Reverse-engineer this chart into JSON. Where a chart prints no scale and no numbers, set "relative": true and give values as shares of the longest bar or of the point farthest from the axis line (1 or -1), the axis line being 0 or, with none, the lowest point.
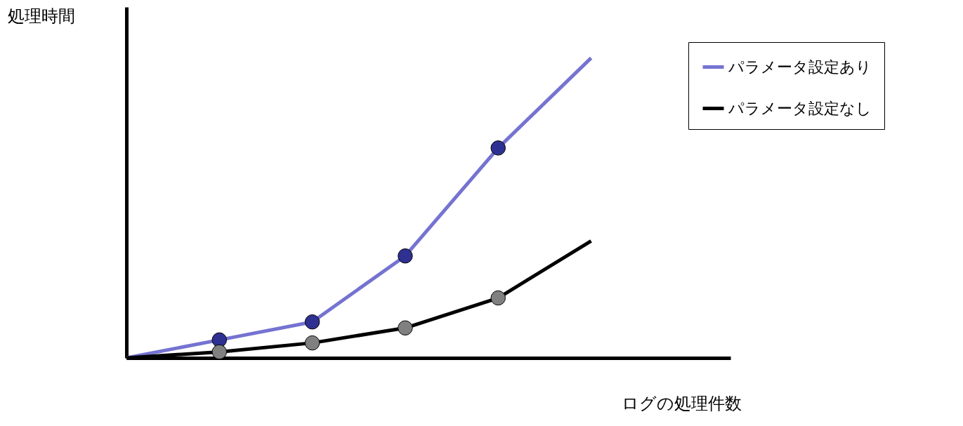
{
  "chart_data": {
    "type": "line",
    "relative": true,
    "xlabel": "ログの処理件数",
    "ylabel": "処理時間",
    "legend": "top right",
    "grid": false,
    "line_style": "solid",
    "marker": "circle",
    "categories": [
      null,
      null,
      null,
      null,
      null,
      null
    ],
    "series": [
      {
        "name": "パラメータ設定あり",
        "color": "#7573d1",
        "colors": [
          null,
          "#2e3192",
          "#2e3192",
          "#2e3192",
          "#2e3192",
          null
        ],
        "values": [
          0,
          0.06,
          0.12,
          0.34,
          0.7,
          1.0
        ]
      },
      {
        "name": "パラメータ設定なし",
        "color": "#000000",
        "colors": [
          null,
          "#808080",
          "#808080",
          "#808080",
          "#808080",
          null
        ],
        "values": [
          0,
          0.02,
          0.05,
          0.1,
          0.2,
          0.39
        ]
      }
    ]
  }
}
